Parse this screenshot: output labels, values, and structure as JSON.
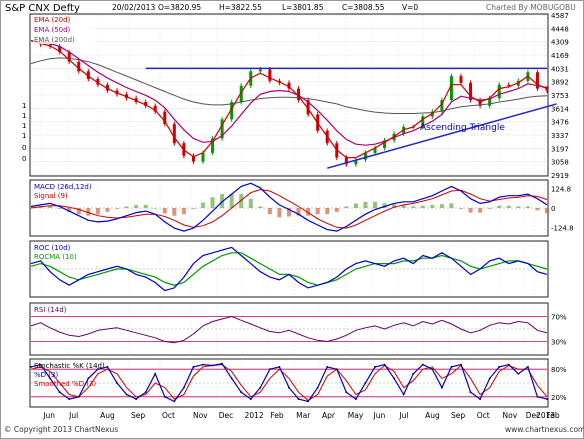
{
  "header": {
    "title": "S&P CNX Defty",
    "date": "20/02/2013",
    "open": "O=3820.95",
    "high": "H=3822.55",
    "low": "L=3801.85",
    "close": "C=3808.55",
    "volume": "V=0",
    "credit": "Charted By MOBUGOBU"
  },
  "footer": {
    "copyright": "© Copyright 2013 ChartNexus",
    "url": "www.chartnexus.com"
  },
  "chart_data": {
    "type": "line",
    "months": [
      "Jun",
      "Jul",
      "Aug",
      "Sep",
      "Oct",
      "Nov",
      "Dec",
      "2012",
      "Feb",
      "Mar",
      "Apr",
      "May",
      "Jun",
      "Jul",
      "Aug",
      "Sep",
      "Oct",
      "Nov",
      "Dec",
      "2013",
      "Feb"
    ],
    "panels": [
      {
        "id": "price",
        "legend": [
          "EMA (20d)",
          "EMA (50d)",
          "EMA (200d)"
        ],
        "legend_colors": [
          "#cc0000",
          "#aa0077",
          "#555555"
        ],
        "right_ticks": [
          "4587",
          "4448",
          "4309",
          "4169",
          "4031",
          "3892",
          "3753",
          "3614",
          "3476",
          "3337",
          "3197",
          "3058",
          "2919"
        ],
        "left_ticks": [
          "1",
          "1",
          "1",
          "1",
          "0",
          "0"
        ],
        "ylim": [
          2919,
          4587
        ],
        "annotation": "Ascending Triangle",
        "close": [
          4310,
          4280,
          4260,
          4200,
          4100,
          4000,
          3920,
          3860,
          3800,
          3760,
          3720,
          3680,
          3640,
          3580,
          3450,
          3250,
          3120,
          3060,
          3150,
          3300,
          3500,
          3680,
          3850,
          4000,
          4020,
          3900,
          3880,
          3820,
          3700,
          3550,
          3380,
          3250,
          3100,
          3030,
          3080,
          3150,
          3200,
          3280,
          3350,
          3420,
          3420,
          3530,
          3580,
          3700,
          3950,
          3880,
          3700,
          3640,
          3720,
          3860,
          3850,
          3900,
          3990,
          3820,
          3800
        ],
        "ema20": [
          4320,
          4290,
          4265,
          4210,
          4120,
          4030,
          3950,
          3880,
          3820,
          3775,
          3735,
          3695,
          3650,
          3595,
          3480,
          3310,
          3180,
          3110,
          3150,
          3270,
          3440,
          3610,
          3780,
          3930,
          3980,
          3930,
          3890,
          3840,
          3740,
          3610,
          3460,
          3320,
          3180,
          3100,
          3100,
          3150,
          3200,
          3260,
          3320,
          3390,
          3420,
          3500,
          3560,
          3660,
          3860,
          3860,
          3740,
          3680,
          3720,
          3820,
          3840,
          3880,
          3950,
          3860,
          3820
        ],
        "ema50": [
          4320,
          4310,
          4290,
          4260,
          4200,
          4130,
          4060,
          3990,
          3930,
          3880,
          3830,
          3790,
          3750,
          3700,
          3620,
          3500,
          3390,
          3300,
          3260,
          3270,
          3330,
          3430,
          3550,
          3670,
          3760,
          3790,
          3800,
          3790,
          3750,
          3680,
          3590,
          3490,
          3380,
          3290,
          3240,
          3230,
          3240,
          3270,
          3310,
          3350,
          3380,
          3430,
          3480,
          3550,
          3680,
          3740,
          3720,
          3700,
          3710,
          3760,
          3790,
          3820,
          3870,
          3850,
          3830
        ],
        "ema200": [
          4080,
          4110,
          4130,
          4140,
          4135,
          4120,
          4100,
          4070,
          4030,
          3990,
          3950,
          3910,
          3870,
          3830,
          3790,
          3750,
          3710,
          3680,
          3660,
          3650,
          3650,
          3660,
          3680,
          3700,
          3715,
          3725,
          3730,
          3730,
          3725,
          3715,
          3700,
          3680,
          3660,
          3630,
          3610,
          3590,
          3575,
          3565,
          3560,
          3560,
          3560,
          3565,
          3570,
          3585,
          3610,
          3630,
          3640,
          3650,
          3660,
          3680,
          3695,
          3710,
          3730,
          3740,
          3745
        ],
        "resistance": [
          [
            12,
            4031
          ],
          [
            54,
            4031
          ]
        ],
        "support": [
          [
            31,
            2990
          ],
          [
            55,
            3660
          ]
        ]
      },
      {
        "id": "macd",
        "legend": [
          "MACD (26d,12d)",
          "Signal (9)"
        ],
        "legend_colors": [
          "#0000cc",
          "#cc0000"
        ],
        "right_ticks": [
          "124.8",
          "0",
          "-124.8"
        ],
        "ylim": [
          -175,
          175
        ],
        "macd": [
          10,
          20,
          30,
          10,
          -20,
          -50,
          -80,
          -90,
          -85,
          -70,
          -50,
          -30,
          -20,
          -40,
          -90,
          -130,
          -150,
          -130,
          -80,
          -20,
          40,
          90,
          140,
          160,
          130,
          70,
          20,
          -10,
          -40,
          -80,
          -110,
          -140,
          -150,
          -120,
          -80,
          -40,
          -10,
          10,
          30,
          40,
          40,
          60,
          80,
          110,
          140,
          110,
          60,
          30,
          40,
          70,
          80,
          80,
          90,
          60,
          20
        ],
        "signal": [
          0,
          8,
          15,
          15,
          5,
          -10,
          -30,
          -50,
          -60,
          -65,
          -60,
          -50,
          -40,
          -40,
          -55,
          -80,
          -110,
          -125,
          -115,
          -90,
          -50,
          0,
          50,
          100,
          120,
          110,
          80,
          45,
          10,
          -30,
          -70,
          -100,
          -125,
          -130,
          -110,
          -80,
          -50,
          -20,
          5,
          20,
          30,
          45,
          60,
          85,
          110,
          115,
          90,
          60,
          45,
          55,
          65,
          70,
          80,
          75,
          55
        ]
      },
      {
        "id": "roc",
        "legend": [
          "ROC (10d)",
          "ROCMA (10)"
        ],
        "legend_colors": [
          "#0000cc",
          "#009900"
        ],
        "ylim": [
          -10,
          10
        ],
        "roc": [
          2,
          3,
          -1,
          -4,
          -6,
          -4,
          -2,
          -1,
          0,
          1,
          0,
          -2,
          -3,
          -5,
          -8,
          -7,
          -3,
          2,
          5,
          6,
          7,
          8,
          5,
          2,
          -1,
          -3,
          -4,
          -2,
          -5,
          -7,
          -6,
          -5,
          -3,
          0,
          2,
          3,
          2,
          1,
          3,
          4,
          2,
          5,
          4,
          6,
          4,
          1,
          -2,
          0,
          3,
          4,
          2,
          3,
          2,
          -1,
          -2
        ],
        "rocma": [
          1,
          2,
          1,
          -1,
          -3,
          -4,
          -3,
          -2,
          -1,
          0,
          0,
          -1,
          -2,
          -3,
          -5,
          -6,
          -5,
          -2,
          1,
          3,
          5,
          6,
          6,
          4,
          2,
          0,
          -2,
          -2,
          -3,
          -5,
          -6,
          -5,
          -4,
          -2,
          0,
          1,
          2,
          2,
          2,
          3,
          3,
          4,
          4,
          5,
          4,
          3,
          1,
          0,
          1,
          2,
          3,
          3,
          2,
          1,
          0
        ]
      },
      {
        "id": "rsi",
        "legend": [
          "RSI (14d)"
        ],
        "legend_colors": [
          "#660066"
        ],
        "right_ticks": [
          "70%",
          "30%"
        ],
        "ylim": [
          10,
          90
        ],
        "rsi": [
          55,
          60,
          52,
          45,
          40,
          38,
          42,
          48,
          50,
          52,
          48,
          44,
          40,
          36,
          30,
          28,
          32,
          42,
          55,
          62,
          66,
          70,
          64,
          58,
          52,
          46,
          44,
          48,
          42,
          36,
          32,
          30,
          34,
          40,
          48,
          52,
          55,
          50,
          56,
          60,
          55,
          62,
          58,
          64,
          58,
          50,
          44,
          48,
          56,
          60,
          58,
          62,
          60,
          48,
          44
        ]
      },
      {
        "id": "stoch",
        "legend": [
          "Stochastic %K (14d)",
          "%D (3)",
          "Smoothed %D (3)"
        ],
        "legend_colors": [
          "#000000",
          "#0000cc",
          "#cc0000"
        ],
        "right_ticks": [
          "80%",
          "20%"
        ],
        "ylim": [
          0,
          100
        ],
        "k": [
          85,
          90,
          60,
          30,
          15,
          20,
          60,
          80,
          85,
          50,
          25,
          15,
          30,
          70,
          20,
          10,
          40,
          85,
          90,
          88,
          92,
          60,
          30,
          15,
          40,
          80,
          85,
          40,
          15,
          10,
          40,
          85,
          80,
          30,
          15,
          50,
          85,
          90,
          60,
          25,
          70,
          90,
          80,
          40,
          85,
          90,
          30,
          15,
          60,
          85,
          90,
          70,
          85,
          20,
          15
        ],
        "d": [
          80,
          85,
          75,
          50,
          25,
          20,
          40,
          70,
          80,
          70,
          40,
          20,
          25,
          50,
          40,
          15,
          25,
          65,
          85,
          88,
          90,
          75,
          45,
          20,
          30,
          60,
          80,
          60,
          30,
          12,
          25,
          65,
          80,
          55,
          25,
          35,
          70,
          88,
          75,
          40,
          55,
          80,
          85,
          60,
          70,
          88,
          60,
          25,
          40,
          75,
          88,
          80,
          80,
          45,
          20
        ]
      }
    ]
  }
}
